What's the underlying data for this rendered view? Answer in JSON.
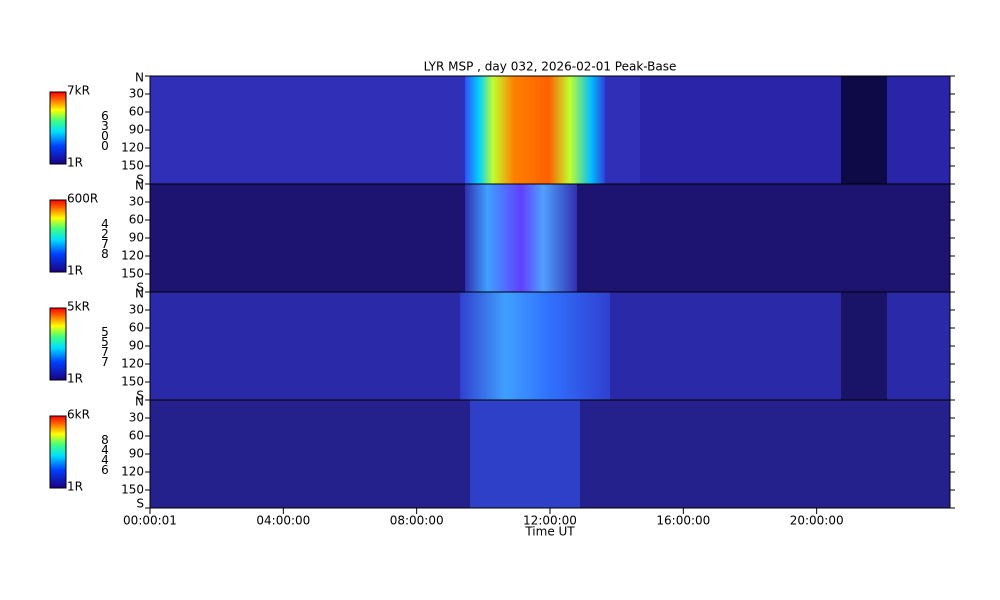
{
  "chart_data": {
    "type": "keogram",
    "title": "LYR MSP , day 032, 2026-02-01 Peak-Base",
    "xlabel": "Time UT",
    "xlim": [
      0,
      24
    ],
    "xticks": [
      {
        "value": 0,
        "label": "00:00:01"
      },
      {
        "value": 4,
        "label": "04:00:00"
      },
      {
        "value": 8,
        "label": "08:00:00"
      },
      {
        "value": 12,
        "label": "12:00:00"
      },
      {
        "value": 16,
        "label": "16:00:00"
      },
      {
        "value": 20,
        "label": "20:00:00"
      }
    ],
    "ylim": [
      0,
      180
    ],
    "yticks": [
      {
        "value": 0,
        "label": "N"
      },
      30,
      60,
      90,
      120,
      150,
      {
        "value": 180,
        "label": "S"
      }
    ],
    "panels": [
      {
        "wavelength": "6300",
        "scale_max": "7kR",
        "scale_min": "1R"
      },
      {
        "wavelength": "4278",
        "scale_max": "600R",
        "scale_min": "1R"
      },
      {
        "wavelength": "5577",
        "scale_max": "5kR",
        "scale_min": "1R"
      },
      {
        "wavelength": "8446",
        "scale_max": "6kR",
        "scale_min": "1R"
      }
    ]
  }
}
